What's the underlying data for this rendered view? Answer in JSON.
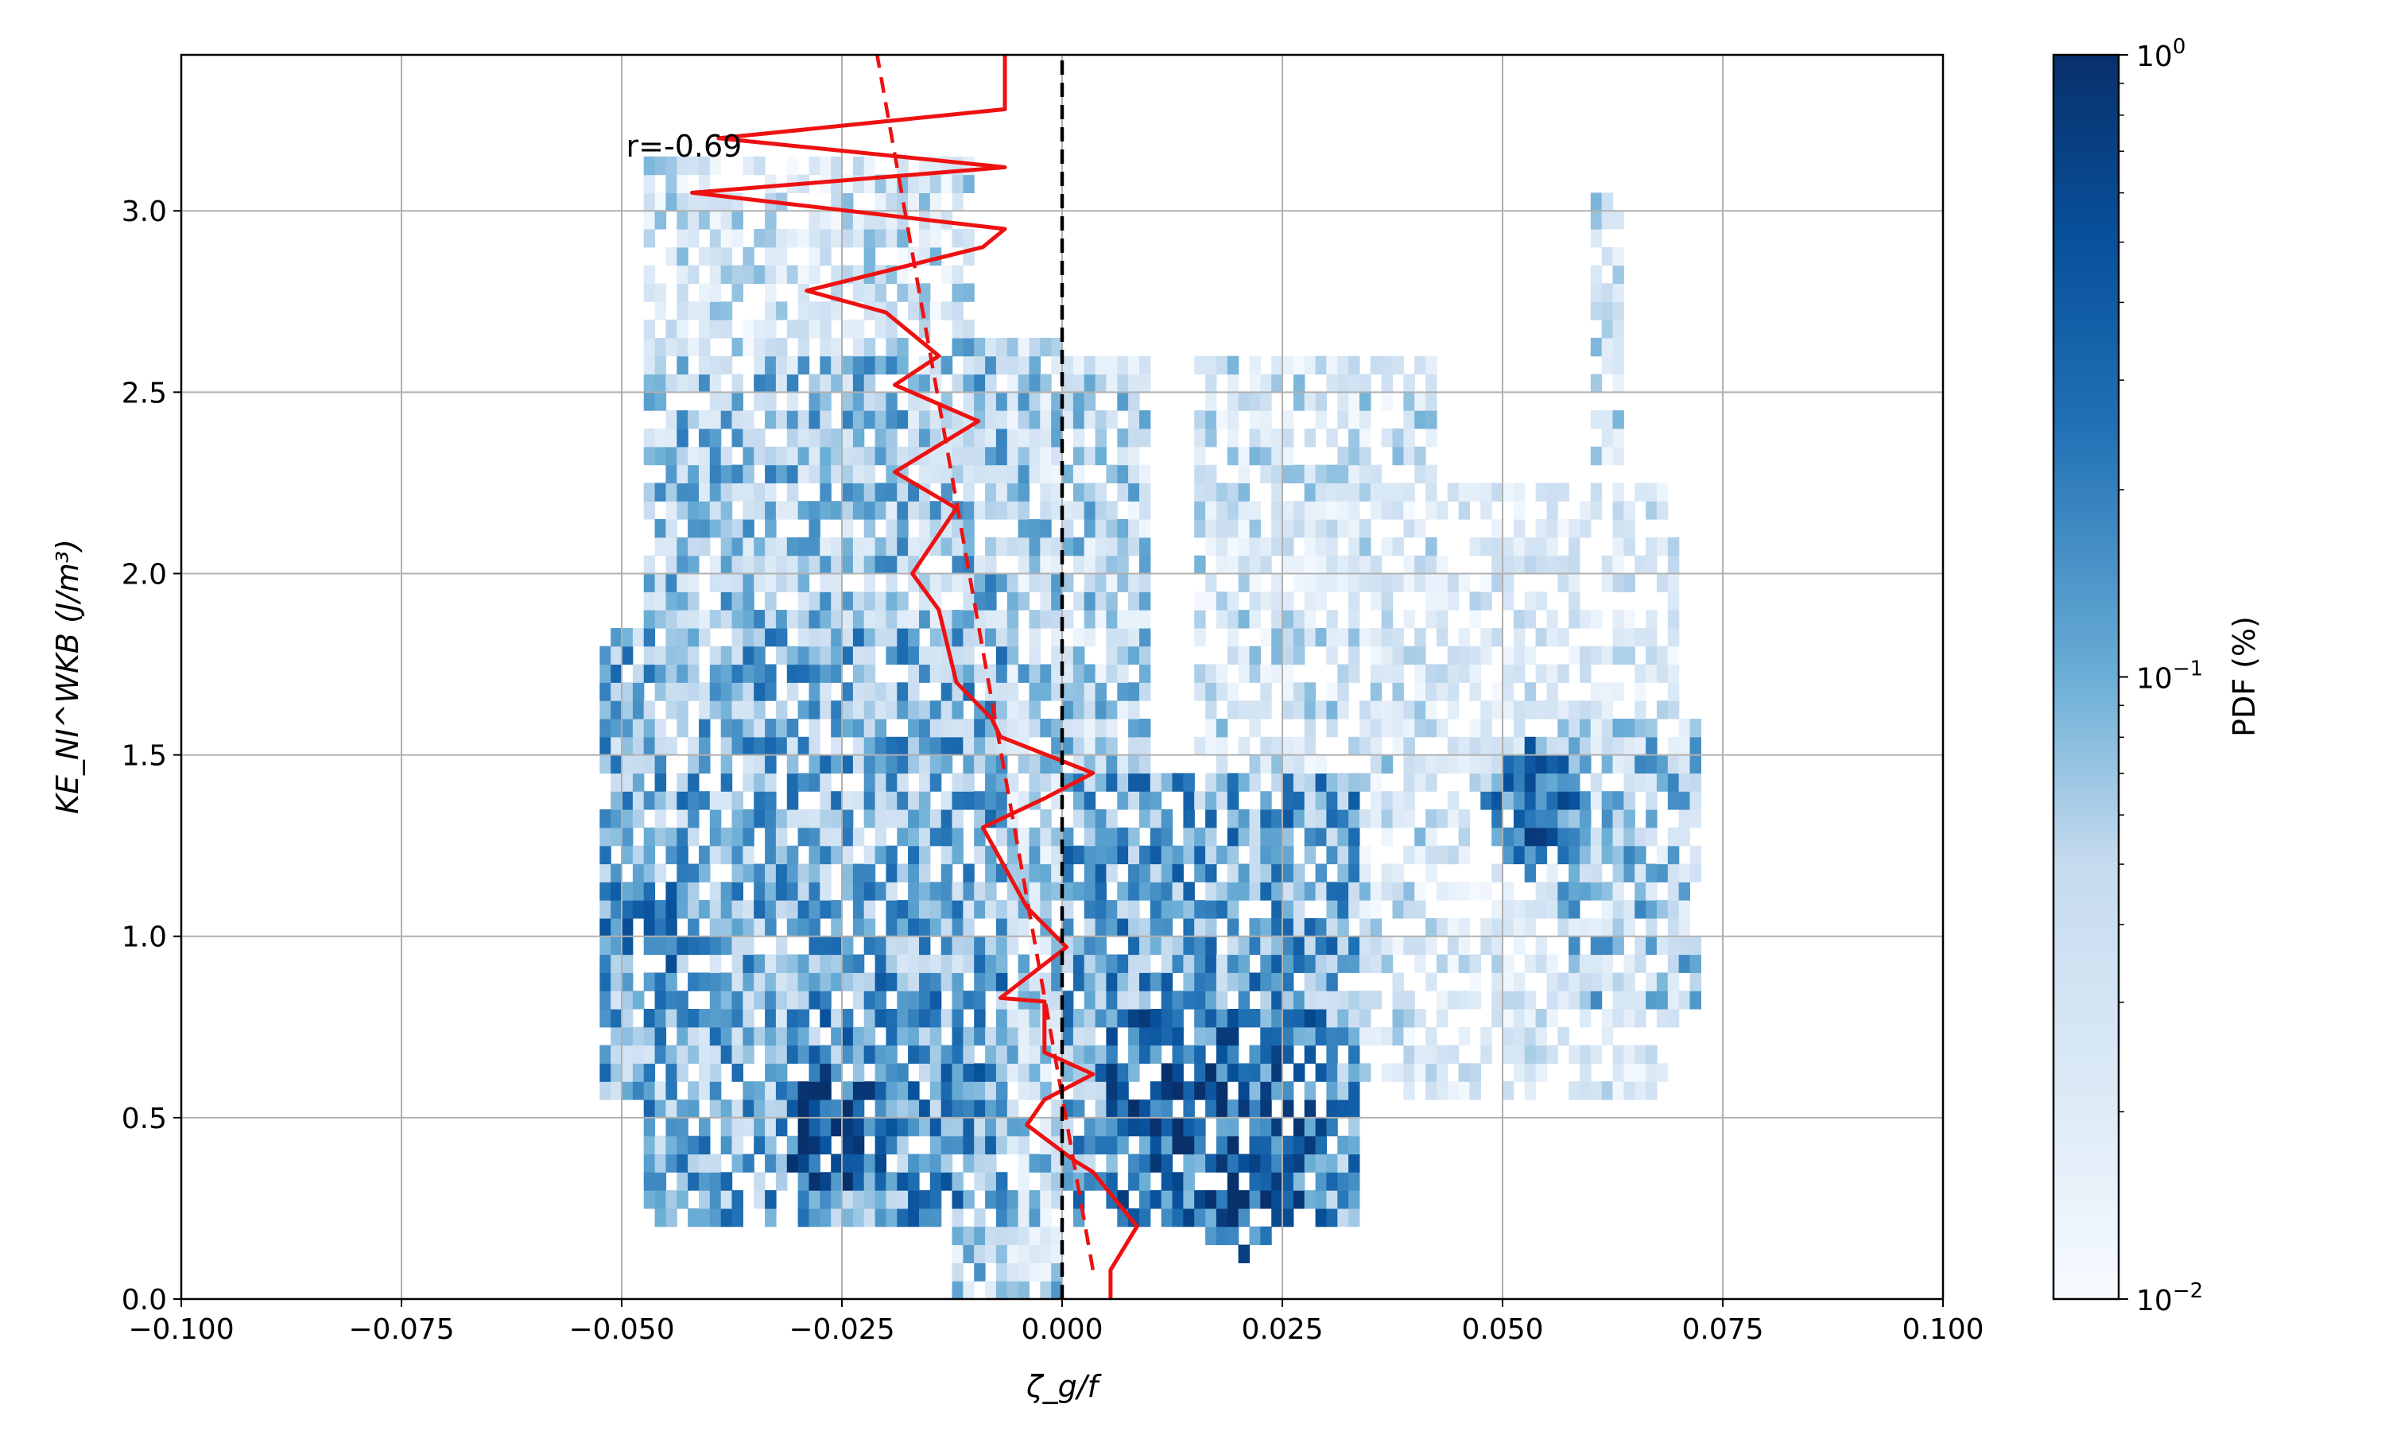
{
  "chart_data": {
    "type": "heatmap",
    "title": "",
    "xlabel": "ζ_g/f",
    "ylabel": "KE_NI^WKB (J/m³)",
    "xlim": [
      -0.1,
      0.1
    ],
    "ylim": [
      0.0,
      3.43
    ],
    "x_ticks": [
      -0.1,
      -0.075,
      -0.05,
      -0.025,
      0.0,
      0.025,
      0.05,
      0.075,
      0.1
    ],
    "x_tick_labels": [
      "−0.100",
      "−0.075",
      "−0.050",
      "−0.025",
      "0.000",
      "0.025",
      "0.050",
      "0.075",
      "0.100"
    ],
    "y_ticks": [
      0.0,
      0.5,
      1.0,
      1.5,
      2.0,
      2.5,
      3.0
    ],
    "y_tick_labels": [
      "0.0",
      "0.5",
      "1.0",
      "1.5",
      "2.0",
      "2.5",
      "3.0"
    ],
    "grid": true,
    "colormap": "Blues",
    "colorbar": {
      "label": "PDF (%)",
      "scale": "log",
      "range": [
        0.01,
        1.0
      ],
      "tick_values": [
        0.01,
        0.1,
        1.0
      ],
      "tick_labels": [
        "10",
        "10",
        "10"
      ],
      "tick_exponents": [
        "−2",
        "−1",
        "0"
      ]
    },
    "heatmap_regions": [
      {
        "x": [
          -0.052,
          -0.006
        ],
        "y": [
          0.55,
          1.85
        ],
        "level": 0.1
      },
      {
        "x": [
          -0.047,
          -0.006
        ],
        "y": [
          1.85,
          2.6
        ],
        "level": 0.07
      },
      {
        "x": [
          -0.047,
          -0.01
        ],
        "y": [
          2.6,
          3.15
        ],
        "level": 0.03
      },
      {
        "x": [
          -0.047,
          -0.024
        ],
        "y": [
          0.2,
          0.55
        ],
        "level": 0.12
      },
      {
        "x": [
          -0.03,
          -0.006
        ],
        "y": [
          0.2,
          0.9
        ],
        "level": 0.16
      },
      {
        "x": [
          -0.012,
          0.0
        ],
        "y": [
          0.0,
          2.65
        ],
        "level": 0.05
      },
      {
        "x": [
          0.0,
          0.034
        ],
        "y": [
          0.2,
          1.45
        ],
        "level": 0.14
      },
      {
        "x": [
          0.005,
          0.03
        ],
        "y": [
          0.2,
          0.8
        ],
        "level": 0.3
      },
      {
        "x": [
          0.0,
          0.01
        ],
        "y": [
          1.4,
          2.6
        ],
        "level": 0.05
      },
      {
        "x": [
          0.015,
          0.042
        ],
        "y": [
          0.55,
          2.6
        ],
        "level": 0.03
      },
      {
        "x": [
          0.027,
          0.07
        ],
        "y": [
          0.55,
          2.25
        ],
        "level": 0.02
      },
      {
        "x": [
          0.056,
          0.073
        ],
        "y": [
          0.8,
          1.6
        ],
        "level": 0.06
      },
      {
        "x": [
          0.06,
          0.064
        ],
        "y": [
          2.3,
          3.05
        ],
        "level": 0.03
      }
    ],
    "heatmap_peaks": [
      {
        "x": 0.014,
        "y": 0.55,
        "level": 0.8
      },
      {
        "x": 0.02,
        "y": 0.3,
        "level": 0.6
      },
      {
        "x": -0.026,
        "y": 0.45,
        "level": 0.7
      },
      {
        "x": -0.048,
        "y": 1.0,
        "level": 0.35
      },
      {
        "x": 0.054,
        "y": 1.35,
        "level": 0.4
      }
    ],
    "series": [
      {
        "kind": "line",
        "color": "#ee1111",
        "style": "solid",
        "points": [
          [
            0.0055,
            0.0
          ],
          [
            0.0055,
            0.08
          ],
          [
            0.0085,
            0.2
          ],
          [
            0.0035,
            0.35
          ],
          [
            0.0015,
            0.38
          ],
          [
            -0.004,
            0.48
          ],
          [
            -0.002,
            0.55
          ],
          [
            0.0035,
            0.62
          ],
          [
            -0.002,
            0.68
          ],
          [
            -0.002,
            0.82
          ],
          [
            -0.007,
            0.83
          ],
          [
            0.0005,
            0.97
          ],
          [
            -0.004,
            1.08
          ],
          [
            -0.009,
            1.3
          ],
          [
            -0.002,
            1.38
          ],
          [
            0.0035,
            1.45
          ],
          [
            -0.007,
            1.55
          ],
          [
            -0.008,
            1.6
          ],
          [
            -0.012,
            1.7
          ],
          [
            -0.014,
            1.9
          ],
          [
            -0.017,
            2.0
          ],
          [
            -0.012,
            2.18
          ],
          [
            -0.019,
            2.28
          ],
          [
            -0.0095,
            2.42
          ],
          [
            -0.019,
            2.52
          ],
          [
            -0.014,
            2.6
          ],
          [
            -0.02,
            2.72
          ],
          [
            -0.029,
            2.78
          ],
          [
            -0.009,
            2.9
          ],
          [
            -0.0065,
            2.95
          ],
          [
            -0.042,
            3.05
          ],
          [
            -0.0065,
            3.12
          ],
          [
            -0.039,
            3.2
          ],
          [
            -0.0065,
            3.28
          ],
          [
            -0.0065,
            3.43
          ]
        ]
      },
      {
        "kind": "fit",
        "color": "#ee1111",
        "style": "dashed",
        "points": [
          [
            0.0035,
            0.08
          ],
          [
            -0.021,
            3.43
          ]
        ]
      },
      {
        "kind": "reference",
        "color": "#000000",
        "style": "dashed",
        "points": [
          [
            0.0,
            0.0
          ],
          [
            0.0,
            3.43
          ]
        ]
      }
    ],
    "annotation": {
      "text": "r=-0.69",
      "x": -0.0495,
      "y": 3.15
    }
  }
}
